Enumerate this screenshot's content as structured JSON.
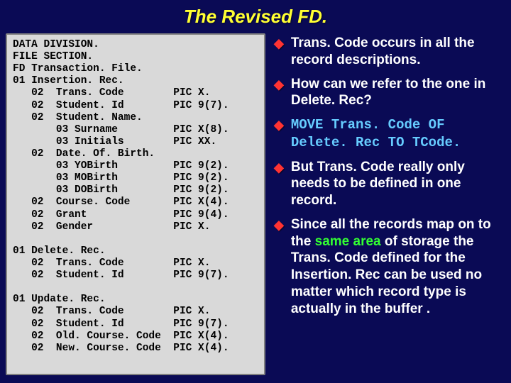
{
  "colors": {
    "background": "#0a0a55",
    "title": "#ffff33",
    "code_bg": "#d9d9d9",
    "code_text": "#000000",
    "code_border": "#808080",
    "bullet_marker": "#ff3333",
    "body_text": "#ffffff",
    "highlight_blue": "#66ccff",
    "highlight_green": "#33ff33"
  },
  "typography": {
    "title_size": 26,
    "code_size": 14.5,
    "bullet_size": 19
  },
  "layout": {
    "code_width": 346
  },
  "title": "The Revised FD.",
  "code": "DATA DIVISION.\nFILE SECTION.\nFD Transaction. File.\n01 Insertion. Rec.\n   02  Trans. Code        PIC X.\n   02  Student. Id        PIC 9(7).\n   02  Student. Name.\n       03 Surname         PIC X(8).\n       03 Initials        PIC XX.\n   02  Date. Of. Birth.\n       03 YOBirth         PIC 9(2).\n       03 MOBirth         PIC 9(2).\n       03 DOBirth         PIC 9(2).\n   02  Course. Code       PIC X(4).\n   02  Grant              PIC 9(4).\n   02  Gender             PIC X.\n\n01 Delete. Rec.\n   02  Trans. Code        PIC X.\n   02  Student. Id        PIC 9(7).\n\n01 Update. Rec.\n   02  Trans. Code        PIC X.\n   02  Student. Id        PIC 9(7).\n   02  Old. Course. Code  PIC X(4).\n   02  New. Course. Code  PIC X(4).",
  "bullets": [
    {
      "segments": [
        {
          "t": "Trans. Code occurs in all the record descriptions."
        }
      ]
    },
    {
      "segments": [
        {
          "t": "How can we refer to the one in Delete. Rec?"
        }
      ]
    },
    {
      "segments": [
        {
          "t": "MOVE Trans. Code OF Delete. Rec TO TCode.",
          "mono": true,
          "color": "highlight_blue"
        }
      ]
    },
    {
      "segments": [
        {
          "t": "But Trans. Code really only needs to be defined in one record."
        }
      ]
    },
    {
      "segments": [
        {
          "t": "Since all the records map on to the "
        },
        {
          "t": "same area",
          "color": "highlight_green"
        },
        {
          "t": " of storage the Trans. Code defined for the Insertion. Rec can be used no matter which record type is actually in the buffer ."
        }
      ]
    }
  ]
}
